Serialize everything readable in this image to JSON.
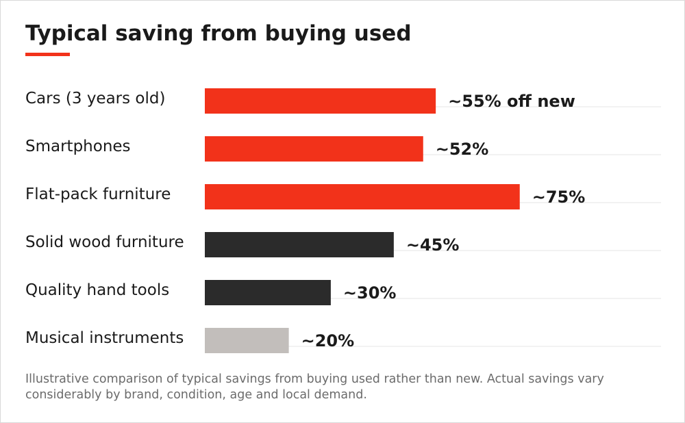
{
  "title": "Typical saving from buying used",
  "note": "Illustrative comparison of typical savings from buying used rather than new. Actual savings vary considerably by brand, condition, age and local demand.",
  "colors": {
    "accent": "#f2321a",
    "dark": "#2b2b2b",
    "grey": "#c2bebb",
    "rule": "#e5e5e5",
    "text": "#1a1a1a"
  },
  "chart_data": {
    "type": "bar",
    "orientation": "horizontal",
    "title": "Typical saving from buying used",
    "categories": [
      "Cars (3 years old)",
      "Smartphones",
      "Flat-pack furniture",
      "Solid wood furniture",
      "Quality hand tools",
      "Musical instruments"
    ],
    "values": [
      55,
      52,
      75,
      45,
      30,
      20
    ],
    "value_labels": [
      "~55% off new",
      "~52%",
      "~75%",
      "~45%",
      "~30%",
      "~20%"
    ],
    "bar_colors": [
      "#f2321a",
      "#f2321a",
      "#f2321a",
      "#2b2b2b",
      "#2b2b2b",
      "#c2bebb"
    ],
    "unit": "%",
    "xlim": [
      0,
      100
    ],
    "grid": false,
    "legend": "none"
  }
}
